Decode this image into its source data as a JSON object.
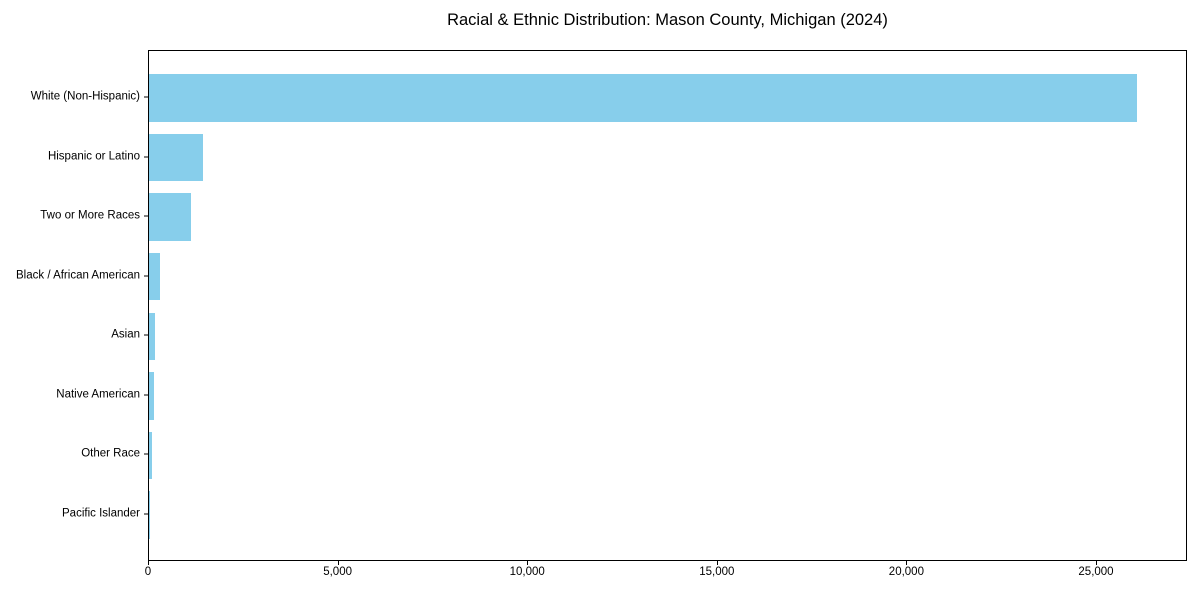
{
  "colors": {
    "bar": "#87CEEB",
    "spine": "#000000",
    "text": "#000000",
    "background": "#FFFFFF"
  },
  "chart_data": {
    "type": "bar",
    "orientation": "horizontal",
    "title": "Racial & Ethnic Distribution: Mason County, Michigan (2024)",
    "xlabel": "",
    "ylabel": "",
    "categories": [
      "White (Non-Hispanic)",
      "Hispanic or Latino",
      "Two or More Races",
      "Black / African American",
      "Asian",
      "Native American",
      "Other Race",
      "Pacific Islander"
    ],
    "values": [
      26100,
      1420,
      1100,
      300,
      160,
      130,
      90,
      10
    ],
    "xlim": [
      0,
      27400
    ],
    "x_ticks": [
      0,
      5000,
      10000,
      15000,
      20000,
      25000
    ],
    "x_tick_labels": [
      "0",
      "5,000",
      "10,000",
      "15,000",
      "20,000",
      "25,000"
    ],
    "grid": false,
    "legend": null,
    "bars_sorted_descending_top_to_bottom": true
  }
}
